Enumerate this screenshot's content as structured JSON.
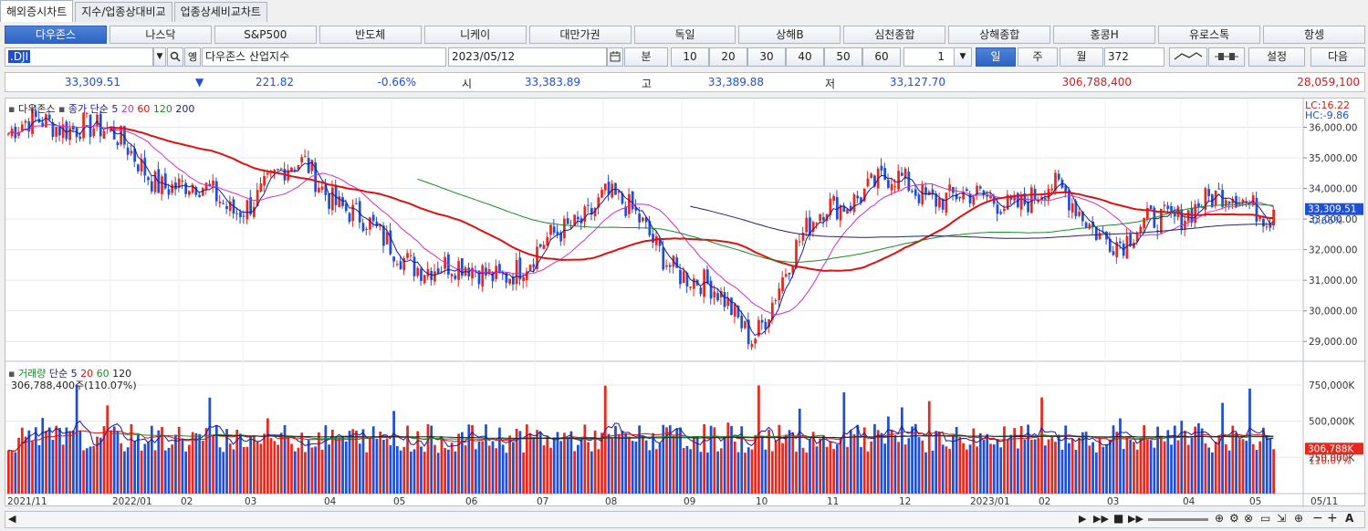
{
  "tabs": [
    "해외증시차트",
    "지수/업종상대비교",
    "업종상세비교차트"
  ],
  "markets": [
    "다우존스",
    "나스닥",
    "S&P500",
    "반도체",
    "니케이",
    "대만가권",
    "독일",
    "상해B",
    "심천종합",
    "상해종합",
    "홍콩H",
    "유로스톡",
    "항셍"
  ],
  "controls": {
    "code": ".DJI",
    "name": "다우존스 산업지수",
    "date": "2023/05/12",
    "period_unit": "분",
    "minute_options": [
      "10",
      "20",
      "30",
      "40",
      "50",
      "60"
    ],
    "count_select": "1",
    "day": "일",
    "week": "주",
    "month": "월",
    "bars": "372",
    "settings": "설정",
    "next": "다음"
  },
  "quote": {
    "price": "33,309.51",
    "arrow": "▼",
    "change": "221.82",
    "pct": "-0.66%",
    "open_label": "시",
    "open": "33,383.89",
    "high_label": "고",
    "high": "33,389.88",
    "low_label": "저",
    "low": "33,127.70",
    "volume": "306,788,400",
    "amount": "28,059,100"
  },
  "price_panel": {
    "title": "다우존스",
    "ma_label": "종가 단순",
    "ma_periods": [
      "5",
      "20",
      "60",
      "120",
      "200"
    ],
    "lc": "LC:16.22",
    "hc": "HC:-9.86",
    "current_tag": "33,309.51",
    "current_pct": "-0.66%",
    "y_ticks": [
      "36,000.00",
      "35,000.00",
      "34,000.00",
      "33,000.00",
      "32,000.00",
      "31,000.00",
      "30,000.00",
      "29,000.00"
    ]
  },
  "volume_panel": {
    "title": "거래량",
    "ma_label": "단순",
    "ma_periods": [
      "5",
      "20",
      "60",
      "120"
    ],
    "current_text": "306,788,400주(110.07%)",
    "current_tag": "306,788K",
    "current_pct": "110.07%",
    "y_ticks": [
      "750,000K",
      "500,000K",
      "250,000K"
    ]
  },
  "x_ticks": [
    "2021/11",
    "2022/01",
    "02",
    "03",
    "04",
    "05",
    "06",
    "07",
    "08",
    "09",
    "10",
    "11",
    "12",
    "2023/01",
    "02",
    "03",
    "04",
    "05"
  ],
  "x_right": "05/11",
  "colors": {
    "up": "#e8281c",
    "down": "#1f4fd6",
    "ma5": "#1a1a9a",
    "ma20": "#d12fc0",
    "ma60": "#e01010",
    "ma120": "#1a8a2a",
    "ma200": "#222266"
  },
  "chart_data": {
    "type": "line",
    "series": [
      {
        "name": "다우존스",
        "x": [
          "2021/11",
          "2022/01",
          "02",
          "03",
          "04",
          "05",
          "06",
          "07",
          "08",
          "09",
          "10",
          "11",
          "12",
          "2023/01",
          "02",
          "03",
          "04",
          "05"
        ],
        "values": [
          35800,
          36300,
          34400,
          33400,
          34800,
          32200,
          31200,
          31500,
          33900,
          31500,
          29300,
          33600,
          34200,
          33500,
          33900,
          32200,
          33700,
          33310
        ]
      }
    ],
    "ylim": [
      28500,
      36700
    ]
  }
}
